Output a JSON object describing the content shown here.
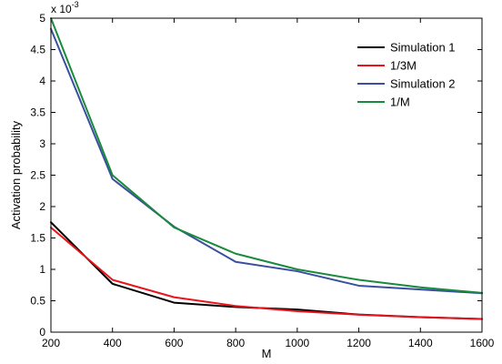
{
  "chart_data": {
    "type": "line",
    "xlabel": "M",
    "ylabel": "Activation probability",
    "y_multiplier": "x 10",
    "y_exponent": "-3",
    "xlim": [
      200,
      1600
    ],
    "ylim": [
      0,
      5
    ],
    "xticks": [
      "200",
      "400",
      "600",
      "800",
      "1000",
      "1200",
      "1400",
      "1600"
    ],
    "yticks": [
      "0",
      "0.5",
      "1",
      "1.5",
      "2",
      "2.5",
      "3",
      "3.5",
      "4",
      "4.5",
      "5"
    ],
    "grid": false,
    "legend_position": "top-right",
    "x": [
      200,
      400,
      600,
      800,
      1000,
      1200,
      1400,
      1600
    ],
    "series": [
      {
        "name": "Simulation 1",
        "color": "#000000",
        "values": [
          1.75,
          0.77,
          0.47,
          0.4,
          0.36,
          0.28,
          0.24,
          0.21
        ]
      },
      {
        "name": "1/3M",
        "color": "#e8141b",
        "values": [
          1.667,
          0.833,
          0.556,
          0.417,
          0.333,
          0.278,
          0.238,
          0.208
        ]
      },
      {
        "name": "Simulation 2",
        "color": "#3a4fa0",
        "values": [
          4.83,
          2.44,
          1.68,
          1.12,
          0.97,
          0.74,
          0.68,
          0.62
        ]
      },
      {
        "name": "1/M",
        "color": "#1a8a3c",
        "values": [
          5.0,
          2.5,
          1.667,
          1.25,
          1.0,
          0.833,
          0.714,
          0.625
        ]
      }
    ]
  }
}
